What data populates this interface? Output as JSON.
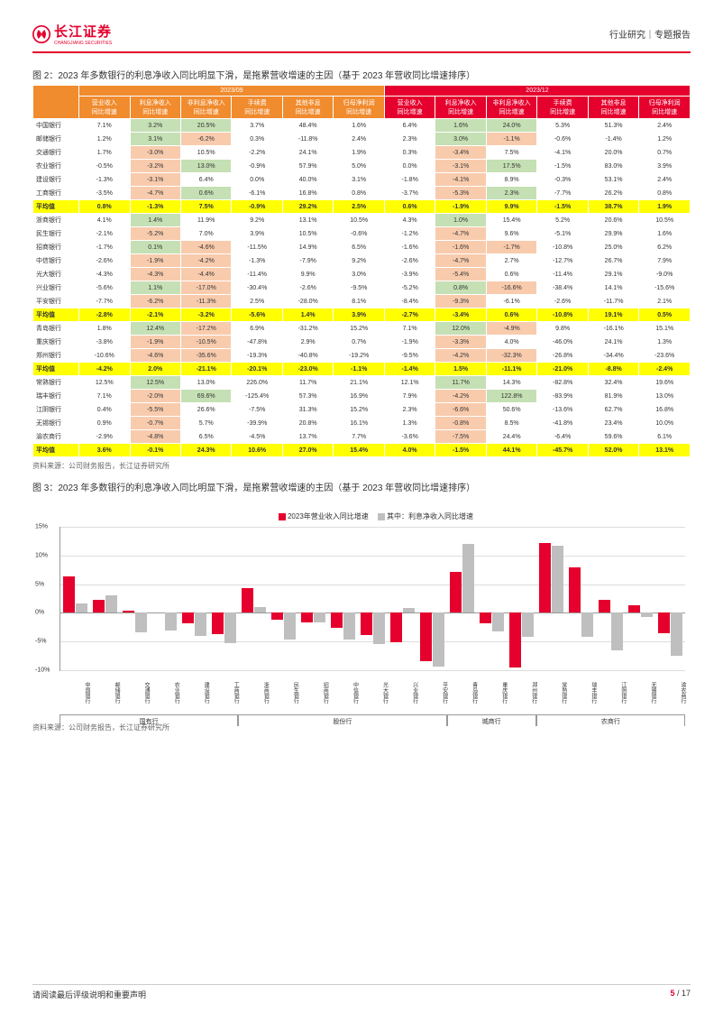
{
  "header": {
    "logo": "长江证券",
    "logo_sub": "CHANGJIANG SECURITIES",
    "right": "行业研究｜专题报告"
  },
  "fig2": {
    "title": "图 2：2023 年多数银行的利息净收入同比明显下滑，是拖累营收增速的主因（基于 2023 年营收同比增速排序）",
    "period1": "2023/09",
    "period2": "2023/12",
    "cols": [
      "营业收入\n同比增速",
      "利息净收入\n同比增速",
      "非利息净收入\n同比增速",
      "手续费\n同比增速",
      "其他非息\n同比增速",
      "归母净利润\n同比增速"
    ],
    "rows": [
      {
        "n": "中国银行",
        "a": [
          "7.1%",
          "3.2%",
          "20.5%",
          "3.7%",
          "48.4%",
          "1.6%"
        ],
        "b": [
          "6.4%",
          "1.6%",
          "24.0%",
          "5.3%",
          "51.3%",
          "2.4%"
        ],
        "hl": [
          0,
          1,
          1,
          0,
          0,
          0,
          0,
          1,
          1,
          0,
          0,
          0
        ]
      },
      {
        "n": "邮储银行",
        "a": [
          "1.2%",
          "3.1%",
          "-6.2%",
          "0.3%",
          "-11.8%",
          "2.4%"
        ],
        "b": [
          "2.3%",
          "3.0%",
          "-1.1%",
          "-0.6%",
          "-1.4%",
          "1.2%"
        ],
        "hl": [
          0,
          1,
          1,
          0,
          0,
          0,
          0,
          1,
          1,
          0,
          0,
          0
        ]
      },
      {
        "n": "交通银行",
        "a": [
          "1.7%",
          "-3.0%",
          "10.5%",
          "-2.2%",
          "24.1%",
          "1.9%"
        ],
        "b": [
          "0.3%",
          "-3.4%",
          "7.5%",
          "-4.1%",
          "20.0%",
          "0.7%"
        ],
        "hl": [
          0,
          1,
          0,
          0,
          0,
          0,
          0,
          1,
          0,
          0,
          0,
          0
        ]
      },
      {
        "n": "农业银行",
        "a": [
          "-0.5%",
          "-3.2%",
          "13.0%",
          "-0.9%",
          "57.9%",
          "5.0%"
        ],
        "b": [
          "0.0%",
          "-3.1%",
          "17.5%",
          "-1.5%",
          "83.0%",
          "3.9%"
        ],
        "hl": [
          0,
          1,
          1,
          0,
          0,
          0,
          0,
          1,
          1,
          0,
          0,
          0
        ]
      },
      {
        "n": "建设银行",
        "a": [
          "-1.3%",
          "-3.1%",
          "6.4%",
          "0.0%",
          "40.0%",
          "3.1%"
        ],
        "b": [
          "-1.8%",
          "-4.1%",
          "8.9%",
          "-0.3%",
          "53.1%",
          "2.4%"
        ],
        "hl": [
          0,
          1,
          0,
          0,
          0,
          0,
          0,
          1,
          0,
          0,
          0,
          0
        ]
      },
      {
        "n": "工商银行",
        "a": [
          "-3.5%",
          "-4.7%",
          "0.6%",
          "-6.1%",
          "16.8%",
          "0.8%"
        ],
        "b": [
          "-3.7%",
          "-5.3%",
          "2.3%",
          "-7.7%",
          "26.2%",
          "0.8%"
        ],
        "hl": [
          0,
          1,
          1,
          0,
          0,
          0,
          0,
          1,
          1,
          0,
          0,
          0
        ]
      },
      {
        "n": "平均值",
        "avg": true,
        "a": [
          "0.8%",
          "-1.3%",
          "7.5%",
          "-0.9%",
          "29.2%",
          "2.5%"
        ],
        "b": [
          "0.6%",
          "-1.9%",
          "9.9%",
          "-1.5%",
          "38.7%",
          "1.9%"
        ]
      },
      {
        "n": "浙商银行",
        "a": [
          "4.1%",
          "1.4%",
          "11.9%",
          "9.2%",
          "13.1%",
          "10.5%"
        ],
        "b": [
          "4.3%",
          "1.0%",
          "15.4%",
          "5.2%",
          "20.6%",
          "10.5%"
        ],
        "hl": [
          0,
          1,
          0,
          0,
          0,
          0,
          0,
          1,
          0,
          0,
          0,
          0
        ]
      },
      {
        "n": "民生银行",
        "a": [
          "-2.1%",
          "-5.2%",
          "7.0%",
          "3.9%",
          "10.5%",
          "-0.6%"
        ],
        "b": [
          "-1.2%",
          "-4.7%",
          "9.6%",
          "-5.1%",
          "29.9%",
          "1.6%"
        ],
        "hl": [
          0,
          1,
          0,
          0,
          0,
          0,
          0,
          1,
          0,
          0,
          0,
          0
        ]
      },
      {
        "n": "招商银行",
        "a": [
          "-1.7%",
          "0.1%",
          "-4.6%",
          "-11.5%",
          "14.9%",
          "6.5%"
        ],
        "b": [
          "-1.6%",
          "-1.6%",
          "-1.7%",
          "-10.8%",
          "25.0%",
          "6.2%"
        ],
        "hl": [
          0,
          1,
          1,
          0,
          0,
          0,
          0,
          1,
          1,
          0,
          0,
          0
        ]
      },
      {
        "n": "中信银行",
        "a": [
          "-2.6%",
          "-1.9%",
          "-4.2%",
          "-1.3%",
          "-7.9%",
          "9.2%"
        ],
        "b": [
          "-2.6%",
          "-4.7%",
          "2.7%",
          "-12.7%",
          "26.7%",
          "7.9%"
        ],
        "hl": [
          0,
          1,
          1,
          0,
          0,
          0,
          0,
          1,
          0,
          0,
          0,
          0
        ]
      },
      {
        "n": "光大银行",
        "a": [
          "-4.3%",
          "-4.3%",
          "-4.4%",
          "-11.4%",
          "9.9%",
          "3.0%"
        ],
        "b": [
          "-3.9%",
          "-5.4%",
          "0.6%",
          "-11.4%",
          "29.1%",
          "-9.0%"
        ],
        "hl": [
          0,
          1,
          1,
          0,
          0,
          0,
          0,
          1,
          0,
          0,
          0,
          0
        ]
      },
      {
        "n": "兴业银行",
        "a": [
          "-5.6%",
          "1.1%",
          "-17.0%",
          "-30.4%",
          "-2.6%",
          "-9.5%"
        ],
        "b": [
          "-5.2%",
          "0.8%",
          "-16.6%",
          "-38.4%",
          "14.1%",
          "-15.6%"
        ],
        "hl": [
          0,
          1,
          1,
          0,
          0,
          0,
          0,
          1,
          1,
          0,
          0,
          0
        ]
      },
      {
        "n": "平安银行",
        "a": [
          "-7.7%",
          "-6.2%",
          "-11.3%",
          "2.5%",
          "-28.0%",
          "8.1%"
        ],
        "b": [
          "-8.4%",
          "-9.3%",
          "-6.1%",
          "-2.6%",
          "-11.7%",
          "2.1%"
        ],
        "hl": [
          0,
          1,
          1,
          0,
          0,
          0,
          0,
          1,
          0,
          0,
          0,
          0
        ]
      },
      {
        "n": "平均值",
        "avg": true,
        "a": [
          "-2.8%",
          "-2.1%",
          "-3.2%",
          "-5.6%",
          "1.4%",
          "3.9%"
        ],
        "b": [
          "-2.7%",
          "-3.4%",
          "0.6%",
          "-10.8%",
          "19.1%",
          "0.5%"
        ]
      },
      {
        "n": "青岛银行",
        "a": [
          "1.8%",
          "12.4%",
          "-17.2%",
          "6.9%",
          "-31.2%",
          "15.2%"
        ],
        "b": [
          "7.1%",
          "12.0%",
          "-4.9%",
          "9.8%",
          "-16.1%",
          "15.1%"
        ],
        "hl": [
          0,
          1,
          1,
          0,
          0,
          0,
          0,
          1,
          1,
          0,
          0,
          0
        ]
      },
      {
        "n": "重庆银行",
        "a": [
          "-3.8%",
          "-1.9%",
          "-10.5%",
          "-47.8%",
          "2.9%",
          "0.7%"
        ],
        "b": [
          "-1.9%",
          "-3.3%",
          "4.0%",
          "-46.0%",
          "24.1%",
          "1.3%"
        ],
        "hl": [
          0,
          1,
          1,
          0,
          0,
          0,
          0,
          1,
          0,
          0,
          0,
          0
        ]
      },
      {
        "n": "郑州银行",
        "a": [
          "-10.6%",
          "-4.6%",
          "-35.6%",
          "-19.3%",
          "-40.8%",
          "-19.2%"
        ],
        "b": [
          "-9.5%",
          "-4.2%",
          "-32.3%",
          "-26.8%",
          "-34.4%",
          "-23.6%"
        ],
        "hl": [
          0,
          1,
          1,
          0,
          0,
          0,
          0,
          1,
          1,
          0,
          0,
          0
        ]
      },
      {
        "n": "平均值",
        "avg": true,
        "a": [
          "-4.2%",
          "2.0%",
          "-21.1%",
          "-20.1%",
          "-23.0%",
          "-1.1%"
        ],
        "b": [
          "-1.4%",
          "1.5%",
          "-11.1%",
          "-21.0%",
          "-8.8%",
          "-2.4%"
        ]
      },
      {
        "n": "常熟银行",
        "a": [
          "12.5%",
          "12.5%",
          "13.0%",
          "226.0%",
          "11.7%",
          "21.1%"
        ],
        "b": [
          "12.1%",
          "11.7%",
          "14.3%",
          "-82.8%",
          "32.4%",
          "19.6%"
        ],
        "hl": [
          0,
          1,
          0,
          0,
          0,
          0,
          0,
          1,
          0,
          0,
          0,
          0
        ]
      },
      {
        "n": "瑞丰银行",
        "a": [
          "7.1%",
          "-2.0%",
          "69.6%",
          "-125.4%",
          "57.3%",
          "16.9%"
        ],
        "b": [
          "7.9%",
          "-4.2%",
          "122.8%",
          "-83.9%",
          "81.9%",
          "13.0%"
        ],
        "hl": [
          0,
          1,
          1,
          0,
          0,
          0,
          0,
          1,
          1,
          0,
          0,
          0
        ]
      },
      {
        "n": "江阴银行",
        "a": [
          "0.4%",
          "-5.5%",
          "26.6%",
          "-7.5%",
          "31.3%",
          "15.2%"
        ],
        "b": [
          "2.3%",
          "-6.6%",
          "50.6%",
          "-13.6%",
          "62.7%",
          "16.8%"
        ],
        "hl": [
          0,
          1,
          0,
          0,
          0,
          0,
          0,
          1,
          0,
          0,
          0,
          0
        ]
      },
      {
        "n": "无锡银行",
        "a": [
          "0.9%",
          "-0.7%",
          "5.7%",
          "-39.9%",
          "20.8%",
          "16.1%"
        ],
        "b": [
          "1.3%",
          "-0.8%",
          "8.5%",
          "-41.8%",
          "23.4%",
          "10.0%"
        ],
        "hl": [
          0,
          1,
          0,
          0,
          0,
          0,
          0,
          1,
          0,
          0,
          0,
          0
        ]
      },
      {
        "n": "渝农商行",
        "a": [
          "-2.9%",
          "-4.8%",
          "6.5%",
          "-4.5%",
          "13.7%",
          "7.7%"
        ],
        "b": [
          "-3.6%",
          "-7.5%",
          "24.4%",
          "-6.4%",
          "59.6%",
          "6.1%"
        ],
        "hl": [
          0,
          1,
          0,
          0,
          0,
          0,
          0,
          1,
          0,
          0,
          0,
          0
        ]
      },
      {
        "n": "平均值",
        "avg": true,
        "a": [
          "3.6%",
          "-0.1%",
          "24.3%",
          "10.6%",
          "27.0%",
          "15.4%"
        ],
        "b": [
          "4.0%",
          "-1.5%",
          "44.1%",
          "-45.7%",
          "52.0%",
          "13.1%"
        ]
      }
    ],
    "source": "资料来源：公司财务报告，长江证券研究所"
  },
  "fig3": {
    "title": "图 3：2023 年多数银行的利息净收入同比明显下滑，是拖累营收增速的主因（基于 2023 年营收同比增速排序）",
    "legend": [
      "2023年营业收入同比增速",
      "其中：利息净收入同比增速"
    ],
    "legend_colors": [
      "#e5002d",
      "#bfbfbf"
    ],
    "ylim": [
      -10,
      15
    ],
    "yticks": [
      -10,
      -5,
      0,
      5,
      10,
      15
    ],
    "banks": [
      "中国银行",
      "邮储银行",
      "交通银行",
      "农业银行",
      "建设银行",
      "工商银行",
      "浙商银行",
      "民生银行",
      "招商银行",
      "中信银行",
      "光大银行",
      "兴业银行",
      "平安银行",
      "青岛银行",
      "重庆银行",
      "郑州银行",
      "常熟银行",
      "瑞丰银行",
      "江阴银行",
      "无锡银行",
      "渝农商行"
    ],
    "rev": [
      6.4,
      2.3,
      0.3,
      0.0,
      -1.8,
      -3.7,
      4.3,
      -1.2,
      -1.6,
      -2.6,
      -3.9,
      -5.2,
      -8.4,
      7.1,
      -1.9,
      -9.5,
      12.1,
      7.9,
      2.3,
      1.3,
      -3.6
    ],
    "nii": [
      1.6,
      3.0,
      -3.4,
      -3.1,
      -4.1,
      -5.3,
      1.0,
      -4.7,
      -1.6,
      -4.7,
      -5.4,
      0.8,
      -9.3,
      12.0,
      -3.3,
      -4.2,
      11.7,
      -4.2,
      -6.6,
      -0.8,
      -7.5
    ],
    "groups": [
      {
        "label": "国有行",
        "span": 6
      },
      {
        "label": "股份行",
        "span": 7
      },
      {
        "label": "城商行",
        "span": 3
      },
      {
        "label": "农商行",
        "span": 5
      }
    ],
    "source": "资料来源：公司财务报告，长江证券研究所"
  },
  "footer": {
    "left": "请阅读最后评级说明和重要声明",
    "page": "5",
    "total": "17"
  },
  "colors": {
    "hl_green": "#c5e0b4",
    "hl_red": "#f8cbad",
    "hl_yellow": "#ffff00"
  }
}
